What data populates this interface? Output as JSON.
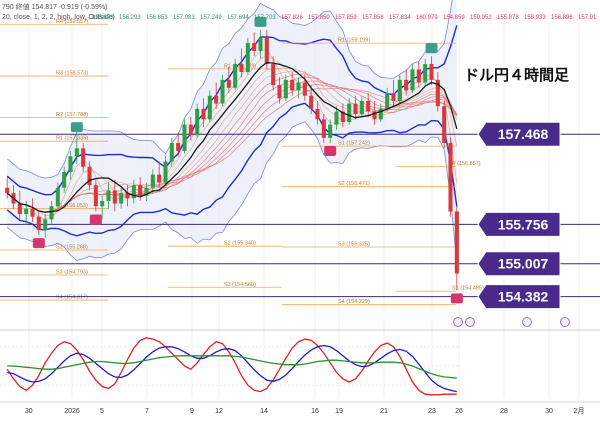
{
  "header": {
    "line1": "790 終値 154.817 -0.919 (-0.59%)",
    "line2": "20, close, 1, 2, 2, high, low, Outside)"
  },
  "top_strip": {
    "values": [
      "155.673",
      "156.293",
      "156.853",
      "157.083",
      "157.249",
      "157.694",
      "157.703",
      "157.826",
      "157.850",
      "157.859",
      "157.858",
      "157.834",
      "160.979",
      "154.859",
      "159.952",
      "155.878",
      "158.933",
      "156.896",
      "157.91"
    ]
  },
  "title": "ドル円４時間足",
  "chart_data": {
    "type": "candlestick",
    "timeframe": "4時間足",
    "x_ticks": [
      "30",
      "2026",
      "5",
      "7",
      "9",
      "12",
      "14",
      "16",
      "19",
      "21",
      "23",
      "26",
      "28",
      "30",
      "2月"
    ],
    "x_tick_fractions": [
      0.048,
      0.12,
      0.17,
      0.245,
      0.32,
      0.365,
      0.44,
      0.525,
      0.565,
      0.64,
      0.72,
      0.765,
      0.84,
      0.915,
      0.965
    ],
    "price_range": [
      153.9,
      159.6
    ],
    "oscillator_range": [
      0,
      100
    ],
    "price_tags": [
      {
        "label": "157.468",
        "value": 157.468
      },
      {
        "label": "155.756",
        "value": 155.756
      },
      {
        "label": "155.007",
        "value": 155.007
      },
      {
        "label": "154.382",
        "value": 154.382
      }
    ],
    "horizontal_lines": [
      157.468,
      155.756,
      155.007,
      154.382
    ],
    "pivots": [
      {
        "label": "R4 (159.557)",
        "value": 159.557,
        "x": [
          0.0,
          0.18
        ]
      },
      {
        "label": "R3 (158.573)",
        "value": 158.573,
        "x": [
          0.0,
          0.18
        ]
      },
      {
        "label": "R2 (157.788)",
        "value": 157.788,
        "x": [
          0.0,
          0.18
        ]
      },
      {
        "label": "R1 (157.335)",
        "value": 157.335,
        "x": [
          0.0,
          0.18
        ]
      },
      {
        "label": "S1 (156.053)",
        "value": 156.053,
        "x": [
          0.0,
          0.18
        ]
      },
      {
        "label": "S2 (155.268)",
        "value": 155.268,
        "x": [
          0.0,
          0.18
        ]
      },
      {
        "label": "S3 (154.793)",
        "value": 154.793,
        "x": [
          0.0,
          0.18
        ]
      },
      {
        "label": "S4 (154.317)",
        "value": 154.317,
        "x": [
          0.0,
          0.18
        ]
      },
      {
        "label": "R1 (158.709)",
        "value": 158.709,
        "x": [
          0.28,
          0.47
        ]
      },
      {
        "label": "S2 (155.340)",
        "value": 155.34,
        "x": [
          0.28,
          0.47
        ]
      },
      {
        "label": "S3 (154.560)",
        "value": 154.56,
        "x": [
          0.28,
          0.47
        ]
      },
      {
        "label": "R1 (159.199)",
        "value": 159.199,
        "x": [
          0.47,
          0.76
        ]
      },
      {
        "label": "S1 (157.242)",
        "value": 157.242,
        "x": [
          0.47,
          0.76
        ]
      },
      {
        "label": "S2 (156.471)",
        "value": 156.471,
        "x": [
          0.47,
          0.76
        ]
      },
      {
        "label": "S3 (155.325)",
        "value": 155.325,
        "x": [
          0.47,
          0.76
        ]
      },
      {
        "label": "S4 (154.229)",
        "value": 154.229,
        "x": [
          0.47,
          0.76
        ]
      },
      {
        "label": "P (156.857)",
        "value": 156.857,
        "x": [
          0.66,
          0.76
        ]
      },
      {
        "label": "S1 (154.485)",
        "value": 154.485,
        "x": [
          0.66,
          0.76
        ]
      }
    ],
    "candles": [
      {
        "o": 156.45,
        "h": 156.65,
        "l": 156.25,
        "c": 156.35
      },
      {
        "o": 156.35,
        "h": 156.5,
        "l": 156.05,
        "c": 156.15
      },
      {
        "o": 156.15,
        "h": 156.4,
        "l": 155.85,
        "c": 155.95
      },
      {
        "o": 155.95,
        "h": 156.2,
        "l": 155.75,
        "c": 156.05
      },
      {
        "o": 156.05,
        "h": 156.25,
        "l": 155.8,
        "c": 155.9
      },
      {
        "o": 155.9,
        "h": 156.0,
        "l": 155.55,
        "c": 155.65
      },
      {
        "o": 155.65,
        "h": 155.95,
        "l": 155.5,
        "c": 155.85
      },
      {
        "o": 155.85,
        "h": 156.2,
        "l": 155.75,
        "c": 156.1
      },
      {
        "o": 156.1,
        "h": 156.55,
        "l": 156.0,
        "c": 156.45
      },
      {
        "o": 156.45,
        "h": 156.85,
        "l": 156.35,
        "c": 156.75
      },
      {
        "o": 156.75,
        "h": 157.15,
        "l": 156.6,
        "c": 157.05
      },
      {
        "o": 157.05,
        "h": 157.45,
        "l": 156.9,
        "c": 157.2
      },
      {
        "o": 157.2,
        "h": 157.3,
        "l": 156.75,
        "c": 156.85
      },
      {
        "o": 156.85,
        "h": 156.95,
        "l": 156.4,
        "c": 156.5
      },
      {
        "o": 156.5,
        "h": 156.6,
        "l": 156.0,
        "c": 156.1
      },
      {
        "o": 156.1,
        "h": 156.3,
        "l": 155.85,
        "c": 156.2
      },
      {
        "o": 156.2,
        "h": 156.55,
        "l": 156.05,
        "c": 156.4
      },
      {
        "o": 156.4,
        "h": 156.6,
        "l": 156.0,
        "c": 156.15
      },
      {
        "o": 156.15,
        "h": 156.45,
        "l": 156.05,
        "c": 156.35
      },
      {
        "o": 156.35,
        "h": 156.5,
        "l": 156.1,
        "c": 156.25
      },
      {
        "o": 156.25,
        "h": 156.6,
        "l": 156.15,
        "c": 156.5
      },
      {
        "o": 156.5,
        "h": 156.65,
        "l": 156.2,
        "c": 156.3
      },
      {
        "o": 156.3,
        "h": 156.55,
        "l": 156.2,
        "c": 156.45
      },
      {
        "o": 156.45,
        "h": 156.8,
        "l": 156.35,
        "c": 156.7
      },
      {
        "o": 156.7,
        "h": 156.95,
        "l": 156.45,
        "c": 156.55
      },
      {
        "o": 156.55,
        "h": 157.05,
        "l": 156.5,
        "c": 156.95
      },
      {
        "o": 156.95,
        "h": 157.4,
        "l": 156.85,
        "c": 157.3
      },
      {
        "o": 157.3,
        "h": 157.5,
        "l": 157.05,
        "c": 157.15
      },
      {
        "o": 157.15,
        "h": 157.75,
        "l": 157.1,
        "c": 157.65
      },
      {
        "o": 157.65,
        "h": 157.8,
        "l": 157.35,
        "c": 157.45
      },
      {
        "o": 157.45,
        "h": 158.05,
        "l": 157.4,
        "c": 157.95
      },
      {
        "o": 157.95,
        "h": 158.15,
        "l": 157.6,
        "c": 157.75
      },
      {
        "o": 157.75,
        "h": 158.3,
        "l": 157.7,
        "c": 158.2
      },
      {
        "o": 158.2,
        "h": 158.45,
        "l": 157.95,
        "c": 158.05
      },
      {
        "o": 158.05,
        "h": 158.6,
        "l": 158.0,
        "c": 158.5
      },
      {
        "o": 158.5,
        "h": 158.75,
        "l": 158.25,
        "c": 158.35
      },
      {
        "o": 158.35,
        "h": 158.9,
        "l": 158.3,
        "c": 158.8
      },
      {
        "o": 158.8,
        "h": 159.1,
        "l": 158.55,
        "c": 158.65
      },
      {
        "o": 158.65,
        "h": 159.3,
        "l": 158.6,
        "c": 159.2
      },
      {
        "o": 159.2,
        "h": 159.4,
        "l": 158.95,
        "c": 159.05
      },
      {
        "o": 159.05,
        "h": 159.45,
        "l": 158.9,
        "c": 159.3
      },
      {
        "o": 159.3,
        "h": 159.45,
        "l": 158.7,
        "c": 158.8
      },
      {
        "o": 158.8,
        "h": 158.95,
        "l": 158.3,
        "c": 158.4
      },
      {
        "o": 158.4,
        "h": 158.55,
        "l": 158.05,
        "c": 158.15
      },
      {
        "o": 158.15,
        "h": 158.6,
        "l": 158.1,
        "c": 158.5
      },
      {
        "o": 158.5,
        "h": 158.65,
        "l": 158.2,
        "c": 158.3
      },
      {
        "o": 158.3,
        "h": 158.55,
        "l": 158.15,
        "c": 158.45
      },
      {
        "o": 158.45,
        "h": 158.6,
        "l": 158.1,
        "c": 158.2
      },
      {
        "o": 158.2,
        "h": 158.4,
        "l": 157.85,
        "c": 157.95
      },
      {
        "o": 157.95,
        "h": 158.1,
        "l": 157.65,
        "c": 157.75
      },
      {
        "o": 157.75,
        "h": 157.85,
        "l": 157.3,
        "c": 157.4
      },
      {
        "o": 157.4,
        "h": 157.75,
        "l": 157.3,
        "c": 157.65
      },
      {
        "o": 157.65,
        "h": 158.0,
        "l": 157.55,
        "c": 157.9
      },
      {
        "o": 157.9,
        "h": 158.05,
        "l": 157.6,
        "c": 157.7
      },
      {
        "o": 157.7,
        "h": 158.15,
        "l": 157.65,
        "c": 158.05
      },
      {
        "o": 158.05,
        "h": 158.2,
        "l": 157.75,
        "c": 157.85
      },
      {
        "o": 157.85,
        "h": 158.2,
        "l": 157.8,
        "c": 158.1
      },
      {
        "o": 158.1,
        "h": 158.25,
        "l": 157.8,
        "c": 157.9
      },
      {
        "o": 157.9,
        "h": 158.1,
        "l": 157.65,
        "c": 157.75
      },
      {
        "o": 157.75,
        "h": 158.05,
        "l": 157.7,
        "c": 157.95
      },
      {
        "o": 157.95,
        "h": 158.35,
        "l": 157.9,
        "c": 158.25
      },
      {
        "o": 158.25,
        "h": 158.5,
        "l": 158.0,
        "c": 158.1
      },
      {
        "o": 158.1,
        "h": 158.6,
        "l": 158.05,
        "c": 158.5
      },
      {
        "o": 158.5,
        "h": 158.7,
        "l": 158.2,
        "c": 158.3
      },
      {
        "o": 158.3,
        "h": 158.8,
        "l": 158.25,
        "c": 158.7
      },
      {
        "o": 158.7,
        "h": 158.85,
        "l": 158.35,
        "c": 158.45
      },
      {
        "o": 158.45,
        "h": 158.9,
        "l": 158.4,
        "c": 158.8
      },
      {
        "o": 158.8,
        "h": 158.95,
        "l": 158.4,
        "c": 158.5
      },
      {
        "o": 158.5,
        "h": 158.65,
        "l": 157.9,
        "c": 158.0
      },
      {
        "o": 158.0,
        "h": 158.1,
        "l": 157.2,
        "c": 157.3
      },
      {
        "o": 157.3,
        "h": 157.4,
        "l": 155.9,
        "c": 156.0
      },
      {
        "o": 156.0,
        "h": 156.1,
        "l": 154.5,
        "c": 154.82
      }
    ],
    "ma": {
      "fast": {
        "color": "#1a1a1a"
      },
      "ribbon_count": 10
    },
    "bands": {
      "inner_color": "#1d2bd6",
      "outer_color": "#7a8ad8"
    },
    "markers": [
      {
        "type": "high",
        "color": "#3a9e8a",
        "candle": 11
      },
      {
        "type": "low",
        "color": "#d6366b",
        "candle": 5
      },
      {
        "type": "low",
        "color": "#d6366b",
        "candle": 14
      },
      {
        "type": "high",
        "color": "#3a9e8a",
        "candle": 40
      },
      {
        "type": "low",
        "color": "#d6366b",
        "candle": 51
      },
      {
        "type": "high",
        "color": "#3a9e8a",
        "candle": 67
      },
      {
        "type": "low",
        "color": "#d6366b",
        "candle": 71
      }
    ],
    "oscillator": {
      "series": [
        {
          "name": "",
          "color": "#e02020",
          "values": [
            45,
            30,
            18,
            12,
            20,
            35,
            55,
            70,
            82,
            88,
            85,
            75,
            60,
            42,
            28,
            18,
            15,
            22,
            40,
            60,
            78,
            90,
            94,
            92,
            88,
            80,
            70,
            60,
            50,
            45,
            55,
            68,
            80,
            88,
            85,
            72,
            55,
            35,
            20,
            12,
            10,
            15,
            28,
            45,
            62,
            78,
            88,
            92,
            90,
            82,
            70,
            55,
            40,
            30,
            25,
            30,
            42,
            58,
            72,
            82,
            86,
            80,
            65,
            45,
            25,
            12,
            6,
            5,
            5,
            6,
            6,
            6
          ]
        },
        {
          "name": "",
          "color": "#1a1ad6",
          "values": [
            40,
            38,
            33,
            28,
            25,
            26,
            30,
            38,
            48,
            58,
            66,
            70,
            68,
            62,
            54,
            46,
            38,
            33,
            32,
            36,
            44,
            54,
            64,
            72,
            78,
            80,
            80,
            77,
            72,
            66,
            62,
            62,
            66,
            72,
            76,
            77,
            74,
            66,
            55,
            44,
            35,
            28,
            26,
            29,
            36,
            46,
            57,
            67,
            75,
            80,
            82,
            80,
            74,
            66,
            58,
            52,
            49,
            50,
            55,
            62,
            69,
            74,
            76,
            73,
            65,
            53,
            40,
            28,
            20,
            15,
            12,
            10
          ]
        },
        {
          "name": "",
          "color": "#2f8f2f",
          "values": [
            50,
            50,
            49,
            48,
            47,
            46,
            45,
            45,
            46,
            48,
            50,
            52,
            54,
            56,
            57,
            57,
            56,
            55,
            54,
            54,
            55,
            57,
            59,
            61,
            63,
            64,
            65,
            66,
            66,
            66,
            66,
            66,
            66,
            66,
            66,
            66,
            65,
            64,
            62,
            60,
            58,
            56,
            54,
            53,
            52,
            52,
            52,
            53,
            55,
            57,
            58,
            59,
            59,
            58,
            57,
            56,
            55,
            55,
            55,
            56,
            56,
            56,
            55,
            53,
            50,
            46,
            42,
            38,
            35,
            33,
            32,
            31
          ]
        }
      ]
    }
  }
}
